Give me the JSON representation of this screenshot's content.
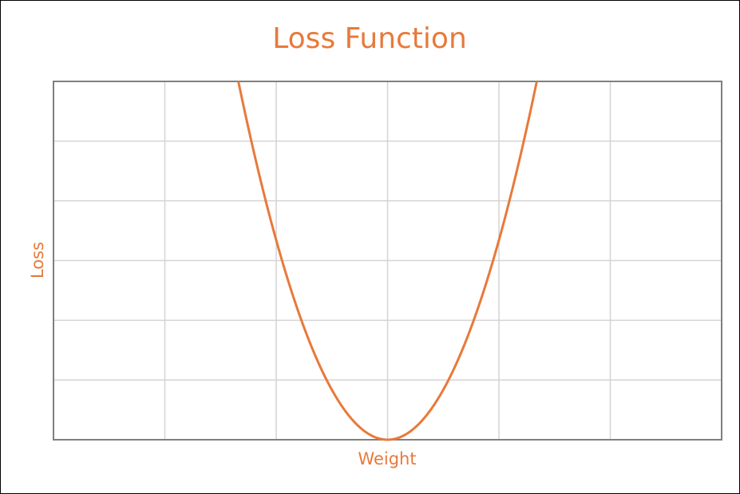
{
  "chart_data": {
    "type": "line",
    "title": "Loss Function",
    "xlabel": "Weight",
    "ylabel": "Loss",
    "xlim": [
      -3,
      3
    ],
    "ylim": [
      0,
      6
    ],
    "grid": true,
    "x_ticks": [
      -3,
      -2,
      -1,
      0,
      1,
      2,
      3
    ],
    "y_ticks": [
      0,
      1,
      2,
      3,
      4,
      5,
      6
    ],
    "series": [
      {
        "x": [
          -1.34,
          -1.2,
          -1.0,
          -0.8,
          -0.6,
          -0.4,
          -0.2,
          0.0,
          0.2,
          0.4,
          0.6,
          0.8,
          1.0,
          1.2,
          1.34
        ],
        "y": [
          6.0,
          4.81,
          3.34,
          2.14,
          1.2,
          0.53,
          0.13,
          0.0,
          0.13,
          0.53,
          1.2,
          2.14,
          3.34,
          4.81,
          6.0
        ]
      }
    ],
    "colors": {
      "line": "#e8793a",
      "text": "#e8793a",
      "grid": "#d4d4d4",
      "axis": "#7f7f7f"
    }
  }
}
